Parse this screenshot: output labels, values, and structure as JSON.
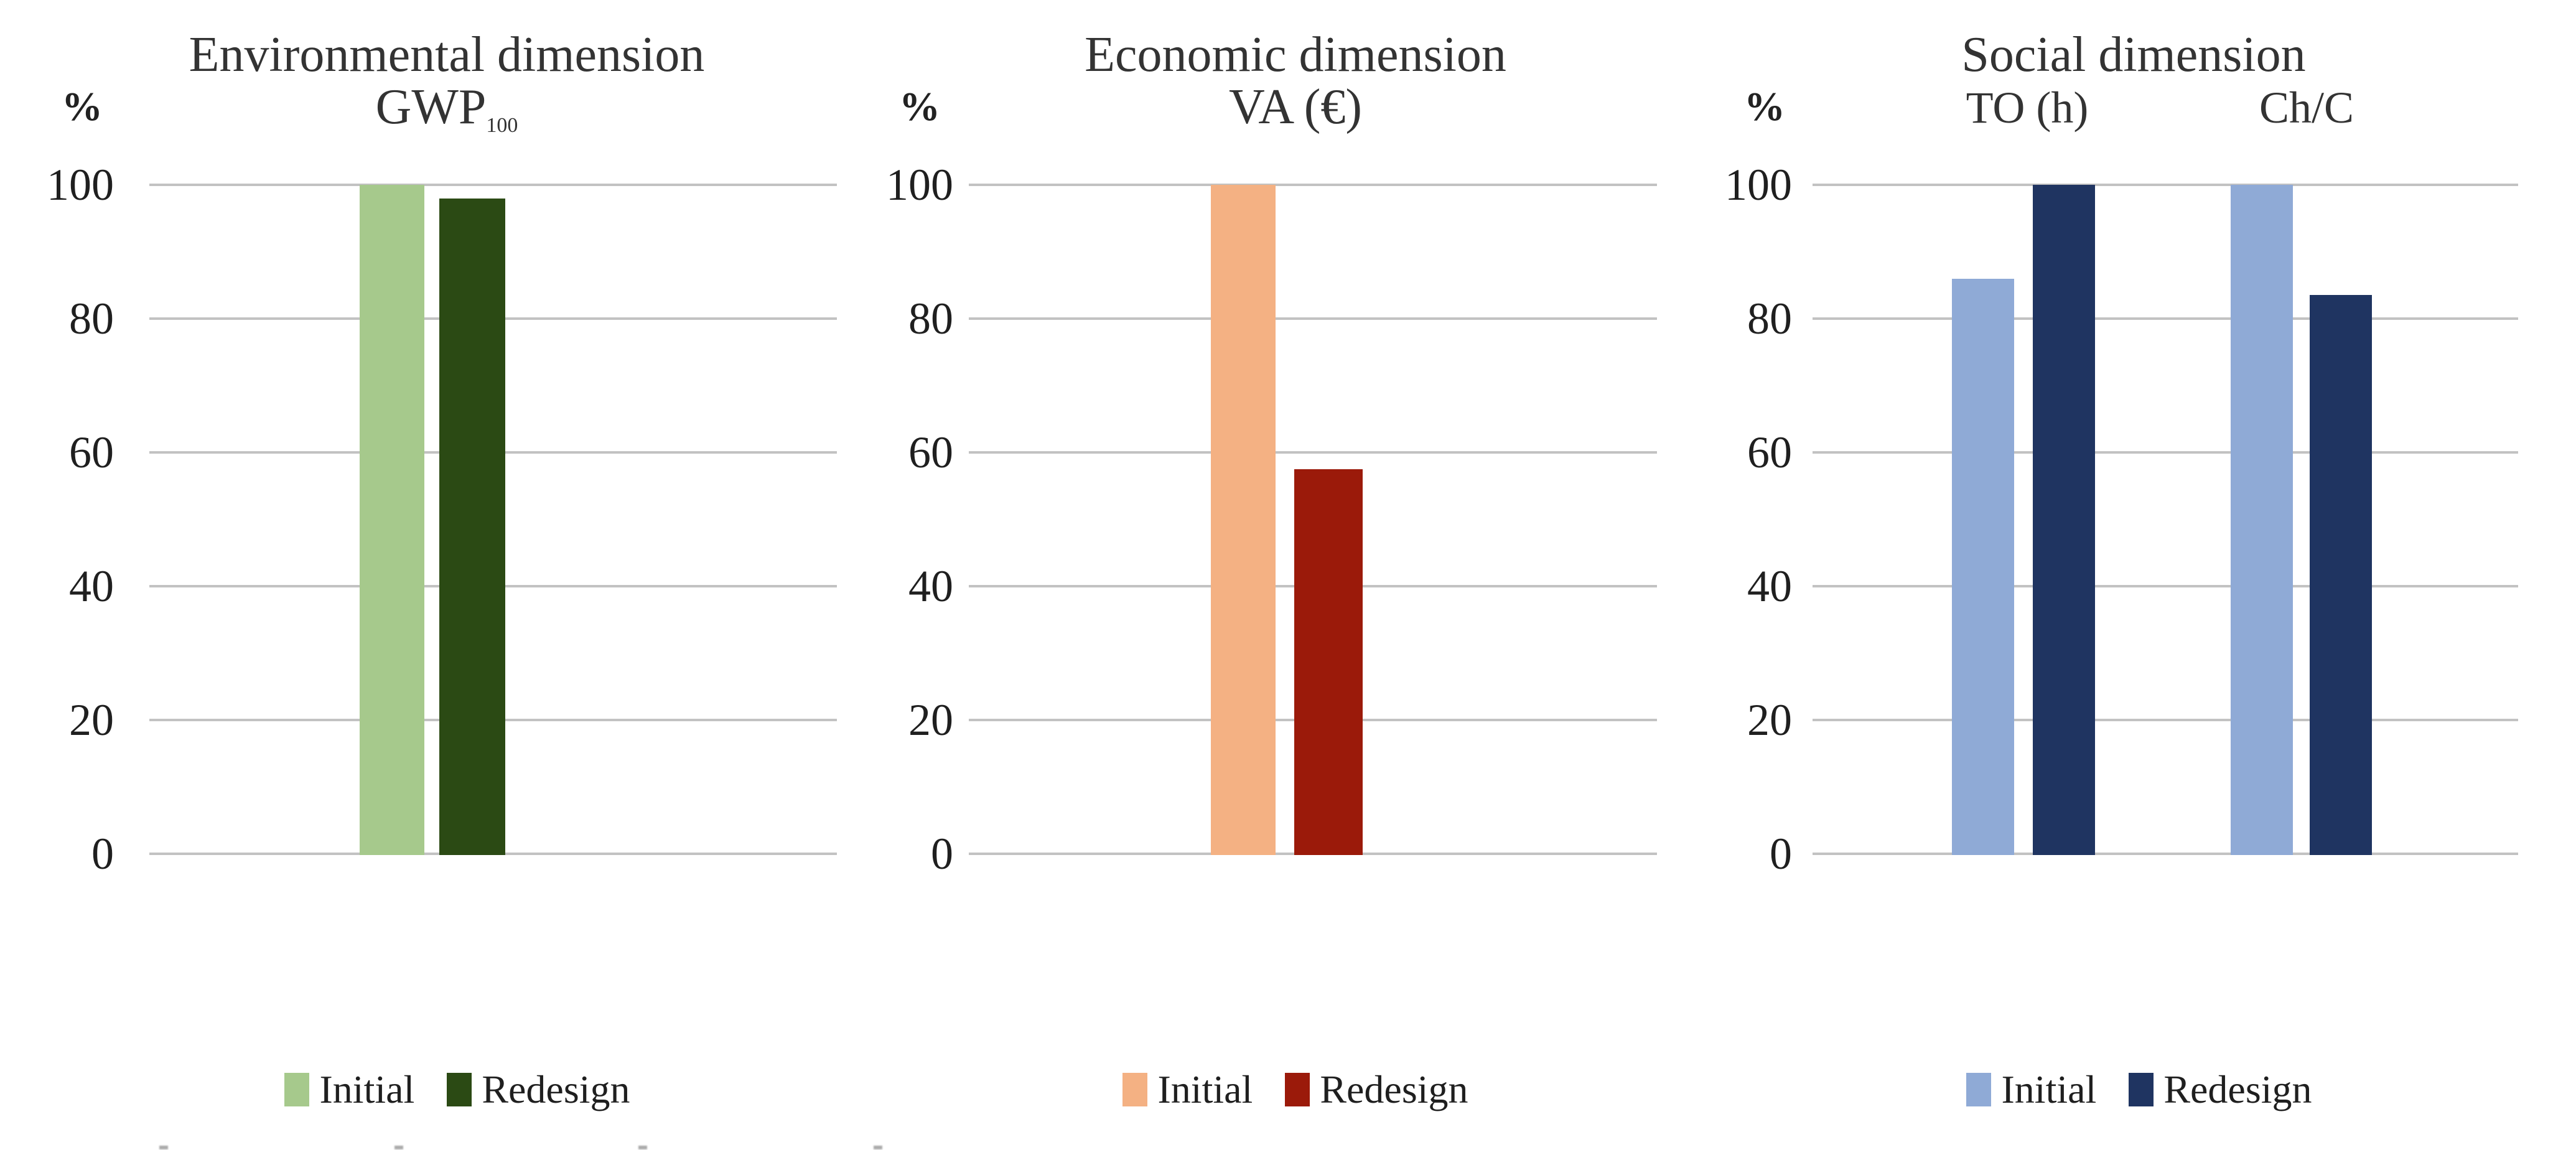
{
  "figure": {
    "description": "Three grouped bar charts comparing Initial vs Redesign scenarios across sustainability dimensions",
    "unit_label": "%",
    "yticks": [
      100,
      80,
      60,
      40,
      20,
      0
    ]
  },
  "chart_data": [
    {
      "type": "bar",
      "title": "Environmental dimension",
      "subtitle": "GWP",
      "subtitle_subscript": "100",
      "ylabel": "%",
      "ylim": [
        0,
        100
      ],
      "grid": true,
      "legend_position": "bottom",
      "categories": [
        "GWP100"
      ],
      "series": [
        {
          "name": "Initial",
          "color": "#a6c98c",
          "values": [
            100
          ]
        },
        {
          "name": "Redesign",
          "color": "#2b4a14",
          "values": [
            98
          ]
        }
      ]
    },
    {
      "type": "bar",
      "title": "Economic dimension",
      "subtitle": "VA (€)",
      "ylabel": "%",
      "ylim": [
        0,
        100
      ],
      "grid": true,
      "legend_position": "bottom",
      "categories": [
        "VA"
      ],
      "series": [
        {
          "name": "Initial",
          "color": "#f4b183",
          "values": [
            100
          ]
        },
        {
          "name": "Redesign",
          "color": "#9b1a0a",
          "values": [
            57.5
          ]
        }
      ]
    },
    {
      "type": "bar",
      "title": "Social dimension",
      "ylabel": "%",
      "ylim": [
        0,
        100
      ],
      "grid": true,
      "legend_position": "bottom",
      "categories": [
        "TO (h)",
        "Ch/C"
      ],
      "series": [
        {
          "name": "Initial",
          "color": "#8faad6",
          "values": [
            86,
            100
          ]
        },
        {
          "name": "Redesign",
          "color": "#1f3461",
          "values": [
            100,
            83.5
          ]
        }
      ]
    }
  ]
}
